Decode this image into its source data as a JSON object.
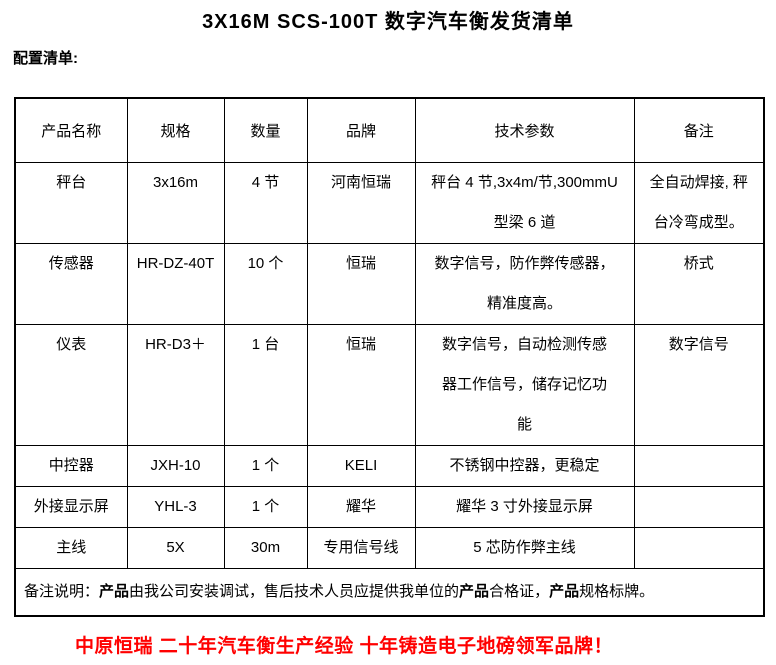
{
  "page": {
    "title": "3X16M SCS-100T 数字汽车衡发货清单",
    "section_label": "配置清单:"
  },
  "table": {
    "headers": [
      "产品名称",
      "规格",
      "数量",
      "品牌",
      "技术参数",
      "备注"
    ],
    "rows": [
      {
        "product": "秤台",
        "spec": "3x16m",
        "qty": "4 节",
        "brand": "河南恒瑞",
        "params": "秤台 4 节,3x4m/节,300mmU\n型梁 6 道",
        "note": "全自动焊接, 秤\n台冷弯成型。"
      },
      {
        "product": "传感器",
        "spec": "HR-DZ-40T",
        "qty": "10 个",
        "brand": "恒瑞",
        "params": "数字信号，防作弊传感器，\n精准度高。",
        "note": "桥式"
      },
      {
        "product": "仪表",
        "spec": "HR-D3＋",
        "qty": "1 台",
        "brand": "恒瑞",
        "params": "数字信号，自动检测传感\n器工作信号，储存记忆功\n能",
        "note": "数字信号"
      },
      {
        "product": "中控器",
        "spec": "JXH-10",
        "qty": "1 个",
        "brand": "KELI",
        "params": "不锈钢中控器，更稳定",
        "note": ""
      },
      {
        "product": "外接显示屏",
        "spec": "YHL-3",
        "qty": "1 个",
        "brand": "耀华",
        "params": "耀华 3 寸外接显示屏",
        "note": ""
      },
      {
        "product": "主线",
        "spec": "5X",
        "qty": "30m",
        "brand": "专用信号线",
        "params": "5 芯防作弊主线",
        "note": ""
      }
    ],
    "remark": {
      "segments": [
        {
          "text": "备注说明：",
          "bold": false
        },
        {
          "text": "产品",
          "bold": true
        },
        {
          "text": "由我公司安装调试，售后技术人员应提供我单位的",
          "bold": false
        },
        {
          "text": "产品",
          "bold": true
        },
        {
          "text": "合格证，",
          "bold": false
        },
        {
          "text": "产品",
          "bold": true
        },
        {
          "text": "规格标牌。",
          "bold": false
        }
      ]
    }
  },
  "footer": {
    "slogan": "中原恒瑞 二十年汽车衡生产经验 十年铸造电子地磅领军品牌！"
  },
  "colors": {
    "slogan": "#FF0000",
    "text": "#000000",
    "border": "#000000",
    "background": "#FFFFFF"
  }
}
